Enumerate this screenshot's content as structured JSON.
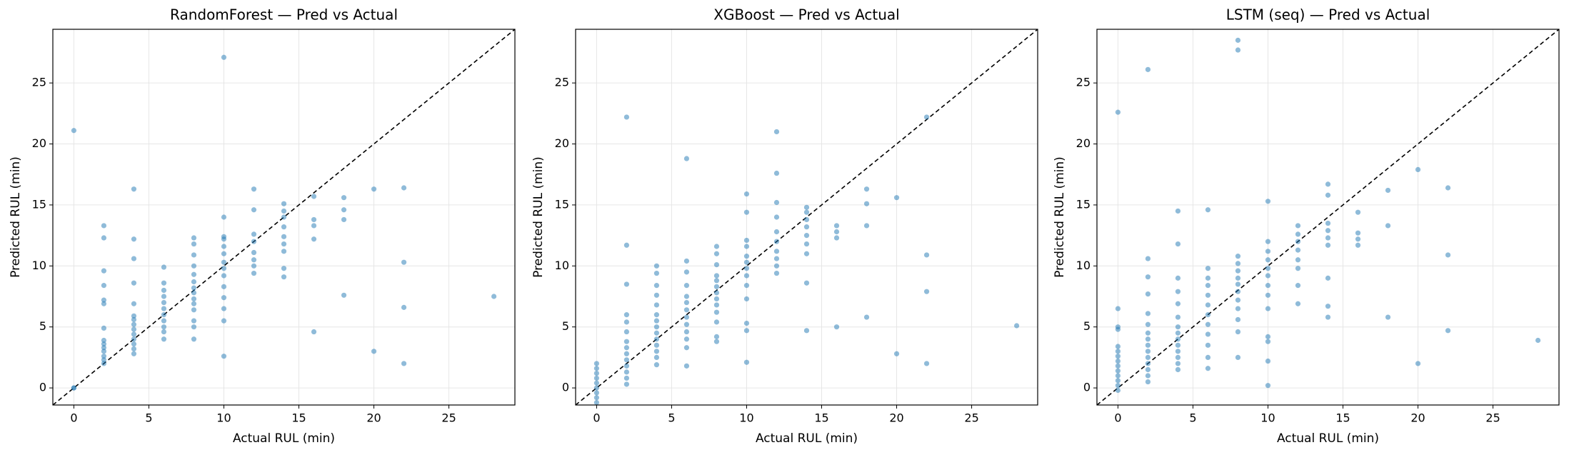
{
  "chart_data": [
    {
      "type": "scatter",
      "title": "RandomForest — Pred vs Actual",
      "xlabel": "Actual RUL (min)",
      "ylabel": "Predicted RUL (min)",
      "color": "#1f77b4",
      "grid": true,
      "xlim": [
        -1.4,
        29.4
      ],
      "ylim": [
        -1.4,
        29.4
      ],
      "xticks": [
        0,
        5,
        10,
        15,
        20,
        25
      ],
      "yticks": [
        0,
        5,
        10,
        15,
        20,
        25
      ],
      "x": [
        0,
        0,
        0,
        2,
        2,
        2,
        2,
        2,
        2,
        2,
        2,
        2,
        2,
        2,
        2,
        2,
        2,
        4,
        4,
        4,
        4,
        4,
        4,
        4,
        4,
        4,
        4,
        4,
        4,
        4,
        4,
        6,
        6,
        6,
        6,
        6,
        6,
        6,
        6,
        6,
        6,
        6,
        8,
        8,
        8,
        8,
        8,
        8,
        8,
        8,
        8,
        8,
        8,
        8,
        8,
        8,
        10,
        10,
        10,
        10,
        10,
        10,
        10,
        10,
        10,
        10,
        10,
        10,
        10,
        10,
        12,
        12,
        12,
        12,
        12,
        12,
        12,
        12,
        14,
        14,
        14,
        14,
        14,
        14,
        14,
        14,
        14,
        16,
        16,
        16,
        16,
        16,
        18,
        18,
        18,
        18,
        20,
        20,
        22,
        22,
        22,
        22,
        28
      ],
      "y": [
        0,
        0,
        21.1,
        2.0,
        2.3,
        2.6,
        3.0,
        3.3,
        3.6,
        3.9,
        4.9,
        6.9,
        7.2,
        8.4,
        9.6,
        12.3,
        13.3,
        2.8,
        3.2,
        3.6,
        4.0,
        4.4,
        4.8,
        5.2,
        5.6,
        5.9,
        6.9,
        8.6,
        10.6,
        12.2,
        16.3,
        4.0,
        4.6,
        5.0,
        5.5,
        6.0,
        6.5,
        7.0,
        7.5,
        8.0,
        8.6,
        9.9,
        4.0,
        5.0,
        5.5,
        6.4,
        6.9,
        7.3,
        7.8,
        8.2,
        8.7,
        9.3,
        10.0,
        10.9,
        11.8,
        12.3,
        2.6,
        5.5,
        6.5,
        7.4,
        8.3,
        9.2,
        9.8,
        10.3,
        11.0,
        11.6,
        12.2,
        12.4,
        14.0,
        27.1,
        9.4,
        10.0,
        10.5,
        11.1,
        12.0,
        12.6,
        14.6,
        16.3,
        9.1,
        9.8,
        11.2,
        11.8,
        12.4,
        13.2,
        14.0,
        14.5,
        15.1,
        4.6,
        12.2,
        13.3,
        13.8,
        15.7,
        7.6,
        13.8,
        14.6,
        15.6,
        3.0,
        16.3,
        2.0,
        6.6,
        10.3,
        16.4,
        7.5
      ]
    },
    {
      "type": "scatter",
      "title": "XGBoost — Pred vs Actual",
      "xlabel": "Actual RUL (min)",
      "ylabel": "Predicted RUL (min)",
      "color": "#1f77b4",
      "grid": true,
      "xlim": [
        -1.4,
        29.4
      ],
      "ylim": [
        -1.4,
        29.4
      ],
      "xticks": [
        0,
        5,
        10,
        15,
        20,
        25
      ],
      "yticks": [
        0,
        5,
        10,
        15,
        20,
        25
      ],
      "x": [
        0,
        0,
        0,
        0,
        0,
        0,
        0,
        0,
        0,
        2,
        2,
        2,
        2,
        2,
        2,
        2,
        2,
        2,
        2,
        2,
        2,
        2,
        2,
        4,
        4,
        4,
        4,
        4,
        4,
        4,
        4,
        4,
        4,
        4,
        4,
        4,
        4,
        6,
        6,
        6,
        6,
        6,
        6,
        6,
        6,
        6,
        6,
        6,
        6,
        6,
        8,
        8,
        8,
        8,
        8,
        8,
        8,
        8,
        8,
        8,
        8,
        8,
        8,
        10,
        10,
        10,
        10,
        10,
        10,
        10,
        10,
        10,
        10,
        10,
        10,
        10,
        12,
        12,
        12,
        12,
        12,
        12,
        12,
        12,
        12,
        12,
        14,
        14,
        14,
        14,
        14,
        14,
        14,
        14,
        14,
        16,
        16,
        16,
        16,
        18,
        18,
        18,
        18,
        20,
        20,
        22,
        22,
        22,
        22,
        28
      ],
      "y": [
        -1.2,
        -0.8,
        -0.4,
        0,
        0.4,
        0.8,
        1.2,
        1.6,
        2.0,
        0.3,
        0.8,
        1.3,
        1.8,
        2.3,
        2.8,
        3.3,
        3.8,
        4.6,
        5.4,
        6.0,
        8.5,
        11.7,
        22.2,
        1.9,
        2.5,
        3.0,
        3.5,
        4.0,
        4.5,
        5.0,
        5.5,
        6.0,
        6.8,
        7.6,
        8.4,
        9.4,
        10.0,
        1.8,
        3.3,
        4.0,
        4.6,
        5.2,
        5.8,
        6.4,
        7.0,
        7.5,
        8.4,
        9.5,
        10.4,
        18.8,
        3.8,
        4.2,
        5.4,
        6.2,
        6.8,
        7.3,
        7.8,
        8.3,
        8.8,
        9.2,
        10.1,
        11.0,
        11.6,
        2.1,
        4.7,
        5.3,
        7.3,
        8.4,
        9.2,
        9.8,
        10.3,
        10.8,
        11.6,
        12.1,
        14.4,
        15.9,
        9.4,
        10.0,
        10.6,
        11.2,
        12.0,
        12.8,
        14.0,
        15.2,
        17.6,
        21.0,
        4.7,
        8.6,
        11.0,
        11.8,
        12.5,
        13.2,
        13.8,
        14.4,
        14.8,
        5.0,
        12.3,
        12.8,
        13.3,
        5.8,
        13.3,
        15.1,
        16.3,
        2.8,
        15.6,
        2.0,
        7.9,
        10.9,
        22.2,
        5.1
      ]
    },
    {
      "type": "scatter",
      "title": "LSTM (seq) — Pred vs Actual",
      "xlabel": "Actual RUL (min)",
      "ylabel": "Predicted RUL (min)",
      "color": "#1f77b4",
      "grid": true,
      "xlim": [
        -1.4,
        29.4
      ],
      "ylim": [
        -1.4,
        29.4
      ],
      "xticks": [
        0,
        5,
        10,
        15,
        20,
        25
      ],
      "yticks": [
        0,
        5,
        10,
        15,
        20,
        25
      ],
      "x": [
        0,
        0,
        0,
        0,
        0,
        0,
        0,
        0,
        0,
        0,
        0,
        0,
        0,
        0,
        2,
        2,
        2,
        2,
        2,
        2,
        2,
        2,
        2,
        2,
        2,
        2,
        2,
        2,
        2,
        4,
        4,
        4,
        4,
        4,
        4,
        4,
        4,
        4,
        4,
        4,
        4,
        4,
        4,
        6,
        6,
        6,
        6,
        6,
        6,
        6,
        6,
        6,
        6,
        6,
        6,
        8,
        8,
        8,
        8,
        8,
        8,
        8,
        8,
        8,
        8,
        8,
        8,
        8,
        10,
        10,
        10,
        10,
        10,
        10,
        10,
        10,
        10,
        10,
        10,
        10,
        10,
        12,
        12,
        12,
        12,
        12,
        12,
        12,
        12,
        14,
        14,
        14,
        14,
        14,
        14,
        14,
        14,
        14,
        16,
        16,
        16,
        16,
        18,
        18,
        18,
        20,
        20,
        22,
        22,
        22,
        28
      ],
      "y": [
        -0.2,
        0.2,
        0.6,
        1.0,
        1.4,
        1.8,
        2.2,
        2.6,
        3.0,
        3.4,
        4.8,
        5.0,
        6.5,
        22.6,
        0.5,
        1.0,
        1.5,
        2.0,
        2.5,
        3.0,
        3.5,
        4.0,
        4.5,
        5.2,
        6.1,
        7.7,
        9.1,
        10.6,
        26.1,
        1.5,
        2.0,
        2.5,
        3.0,
        3.5,
        4.0,
        4.5,
        5.0,
        5.8,
        6.9,
        7.9,
        9.0,
        11.8,
        14.5,
        1.6,
        2.5,
        3.5,
        4.4,
        5.2,
        6.0,
        6.8,
        7.6,
        8.4,
        9.0,
        9.8,
        14.6,
        2.5,
        4.6,
        5.6,
        6.5,
        7.2,
        7.9,
        8.5,
        9.0,
        9.6,
        10.2,
        10.8,
        27.7,
        28.5,
        0.2,
        2.2,
        3.8,
        4.2,
        6.5,
        7.6,
        8.4,
        9.2,
        9.8,
        10.5,
        11.2,
        12.0,
        15.3,
        6.9,
        8.4,
        9.8,
        10.5,
        11.3,
        12.0,
        12.6,
        13.3,
        5.8,
        6.7,
        9.0,
        11.7,
        12.3,
        12.9,
        13.5,
        15.8,
        16.7,
        11.7,
        12.2,
        12.7,
        14.4,
        5.8,
        13.3,
        16.2,
        2.0,
        17.9,
        4.7,
        10.9,
        16.4,
        3.9
      ]
    }
  ]
}
